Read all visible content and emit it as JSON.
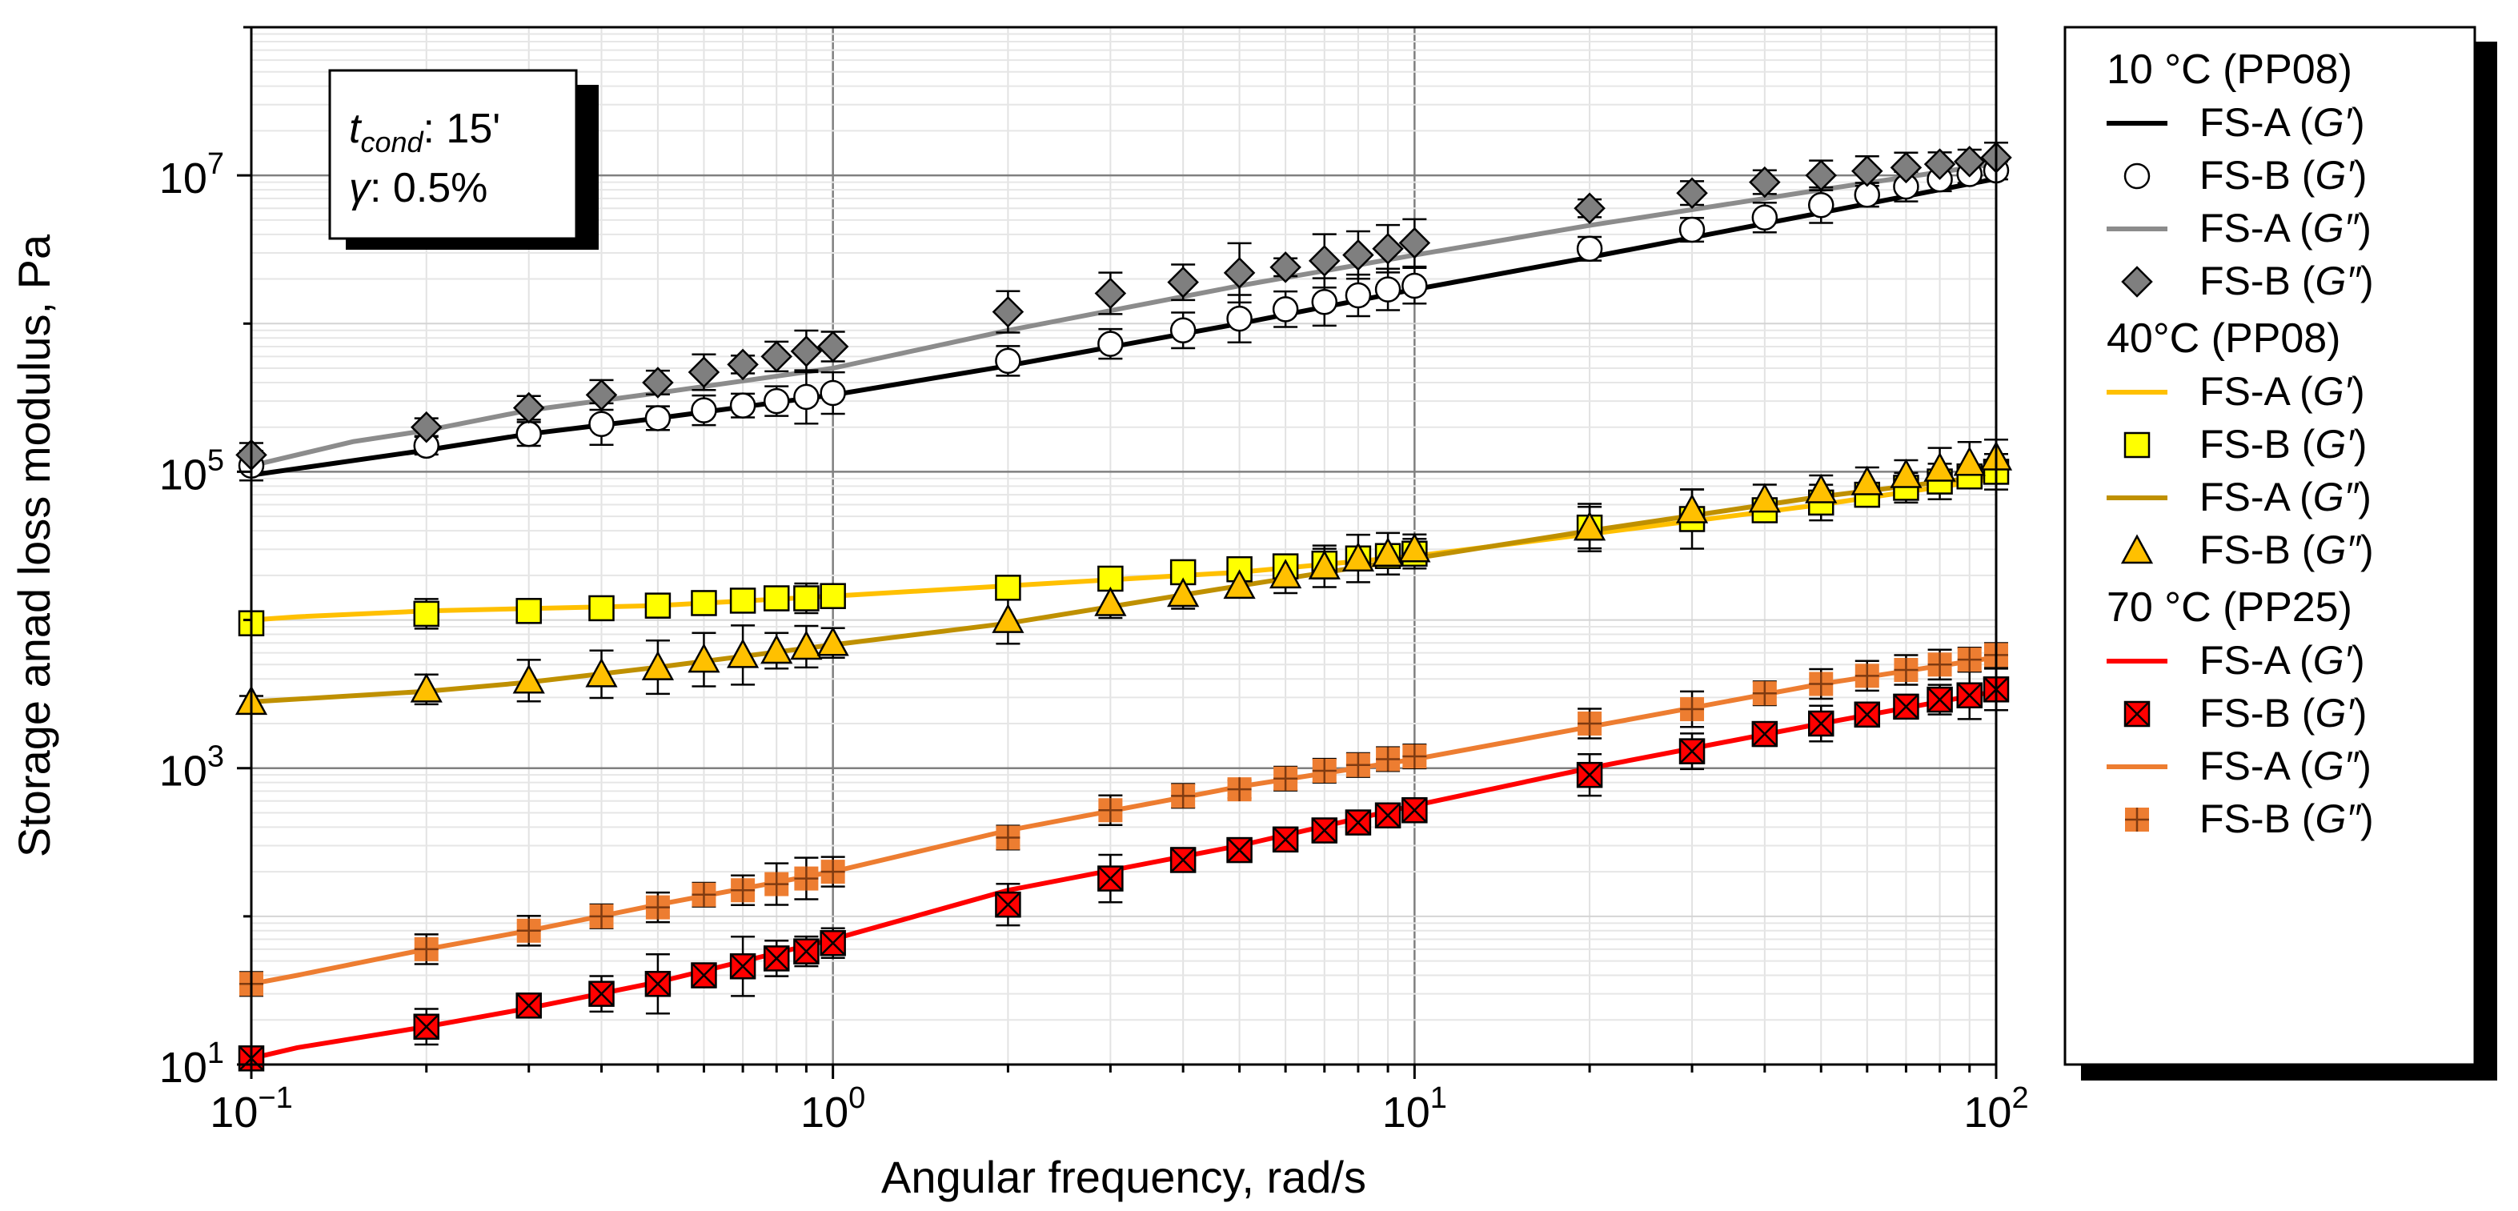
{
  "chart_data": {
    "type": "line",
    "title": "",
    "xlabel": "Angular frequency, rad/s",
    "ylabel": "Storage anad loss modulus, Pa",
    "xscale": "log",
    "yscale": "log",
    "xlim": [
      0.1,
      100
    ],
    "ylim": [
      10,
      100000000
    ],
    "x_tick_labels": [
      {
        "base": "10",
        "exp": "−1"
      },
      {
        "base": "10",
        "exp": "0"
      },
      {
        "base": "10",
        "exp": "1"
      },
      {
        "base": "10",
        "exp": "2"
      }
    ],
    "y_tick_labels": [
      {
        "base": "10",
        "exp": "1"
      },
      {
        "base": "10",
        "exp": "3"
      },
      {
        "base": "10",
        "exp": "5"
      },
      {
        "base": "10",
        "exp": "7"
      }
    ],
    "annotation": {
      "line1_symbol": "t",
      "line1_sub": "cond",
      "line1_text": ": 15'",
      "line2_symbol": "γ",
      "line2_text": ": 0.5%"
    },
    "legend": {
      "placement": "right",
      "groups": [
        {
          "title": "10 °C (PP08)",
          "entries": [
            {
              "prefix": "FS-A (",
              "mod": "G′",
              "suffix": ")",
              "kind": "line",
              "color": "#000000"
            },
            {
              "prefix": "FS-B (",
              "mod": "G′",
              "suffix": ")",
              "kind": "circle",
              "color": "#ffffff"
            },
            {
              "prefix": "FS-A (",
              "mod": "G″",
              "suffix": ")",
              "kind": "line",
              "color": "#8c8c8c"
            },
            {
              "prefix": "FS-B (",
              "mod": "G″",
              "suffix": ")",
              "kind": "diamond",
              "color": "#7f7f7f"
            }
          ]
        },
        {
          "title": "40°C (PP08)",
          "entries": [
            {
              "prefix": "FS-A (",
              "mod": "G′",
              "suffix": ")",
              "kind": "line",
              "color": "#ffc000"
            },
            {
              "prefix": "FS-B (",
              "mod": "G′",
              "suffix": ")",
              "kind": "square",
              "color": "#ffff00"
            },
            {
              "prefix": "FS-A (",
              "mod": "G″",
              "suffix": ")",
              "kind": "line",
              "color": "#bf9000"
            },
            {
              "prefix": "FS-B (",
              "mod": "G″",
              "suffix": ")",
              "kind": "triangle",
              "color": "#ffc000"
            }
          ]
        },
        {
          "title": "70 °C (PP25)",
          "entries": [
            {
              "prefix": "FS-A (",
              "mod": "G′",
              "suffix": ")",
              "kind": "line",
              "color": "#ff0000"
            },
            {
              "prefix": "FS-B (",
              "mod": "G′",
              "suffix": ")",
              "kind": "xsquare",
              "color": "#ff0000"
            },
            {
              "prefix": "FS-A (",
              "mod": "G″",
              "suffix": ")",
              "kind": "line",
              "color": "#ed7d31"
            },
            {
              "prefix": "FS-B (",
              "mod": "G″",
              "suffix": ")",
              "kind": "plussquare",
              "color": "#ed7d31"
            }
          ]
        }
      ]
    },
    "series": [
      {
        "name": "10 °C FS-A (G′)",
        "kind": "line",
        "color": "#000000",
        "x": [
          0.1,
          0.2,
          0.3,
          0.5,
          1,
          2,
          5,
          10,
          20,
          50,
          100
        ],
        "y": [
          95000,
          140000,
          180000,
          230000,
          330000,
          520000,
          1000000,
          1700000,
          2800000,
          5600000,
          9500000
        ]
      },
      {
        "name": "10 °C FS-B (G′)",
        "kind": "circle",
        "color": "#ffffff",
        "x": [
          0.1,
          0.2,
          0.3,
          0.4,
          0.5,
          0.6,
          0.7,
          0.8,
          0.9,
          1,
          2,
          3,
          4,
          5,
          6,
          7,
          8,
          9,
          10,
          20,
          30,
          40,
          50,
          60,
          70,
          80,
          90,
          100
        ],
        "y": [
          110000,
          150000,
          180000,
          210000,
          230000,
          260000,
          280000,
          300000,
          320000,
          340000,
          560000,
          730000,
          900000,
          1080000,
          1250000,
          1400000,
          1550000,
          1700000,
          1800000,
          3200000,
          4300000,
          5200000,
          6300000,
          7400000,
          8400000,
          9400000,
          10200000,
          10800000
        ],
        "err": [
          0.1,
          0.06,
          0.08,
          0.14,
          0.08,
          0.1,
          0.08,
          0.1,
          0.18,
          0.14,
          0.1,
          0.1,
          0.12,
          0.16,
          0.12,
          0.16,
          0.14,
          0.14,
          0.12,
          0.08,
          0.08,
          0.1,
          0.12,
          0.08,
          0.1,
          0.08,
          0.06,
          0.06
        ]
      },
      {
        "name": "10 °C FS-A (G″)",
        "kind": "line",
        "color": "#8c8c8c",
        "x": [
          0.1,
          0.15,
          0.2,
          0.3,
          0.5,
          1,
          2,
          5,
          10,
          20,
          50,
          100
        ],
        "y": [
          110000,
          160000,
          190000,
          260000,
          340000,
          500000,
          900000,
          1800000,
          2900000,
          4600000,
          8000000,
          12000000
        ]
      },
      {
        "name": "10 °C FS-B (G″)",
        "kind": "diamond",
        "color": "#7f7f7f",
        "x": [
          0.1,
          0.2,
          0.3,
          0.4,
          0.5,
          0.6,
          0.7,
          0.8,
          0.9,
          1,
          2,
          3,
          4,
          5,
          6,
          7,
          8,
          9,
          10,
          20,
          30,
          40,
          50,
          60,
          70,
          80,
          90,
          100
        ],
        "y": [
          130000,
          200000,
          270000,
          330000,
          400000,
          470000,
          530000,
          600000,
          650000,
          700000,
          1200000,
          1600000,
          1900000,
          2200000,
          2400000,
          2650000,
          2900000,
          3200000,
          3500000,
          6000000,
          7600000,
          9000000,
          10000000,
          10700000,
          11300000,
          11900000,
          12400000,
          13200000
        ],
        "err": [
          0.08,
          0.06,
          0.08,
          0.1,
          0.08,
          0.12,
          0.06,
          0.1,
          0.14,
          0.1,
          0.14,
          0.14,
          0.12,
          0.2,
          0.06,
          0.18,
          0.16,
          0.16,
          0.16,
          0.06,
          0.08,
          0.08,
          0.1,
          0.1,
          0.1,
          0.08,
          0.08,
          0.1
        ]
      },
      {
        "name": "40°C FS-A (G′)",
        "kind": "line",
        "color": "#ffc000",
        "x": [
          0.1,
          0.12,
          0.2,
          0.5,
          1,
          2,
          5,
          10,
          20,
          50,
          100
        ],
        "y": [
          10000,
          10500,
          11500,
          12500,
          14500,
          17000,
          21000,
          27000,
          38000,
          60000,
          90000
        ]
      },
      {
        "name": "40°C FS-B (G′)",
        "kind": "square",
        "color": "#ffff00",
        "x": [
          0.1,
          0.2,
          0.3,
          0.4,
          0.5,
          0.6,
          0.7,
          0.8,
          0.9,
          1,
          2,
          3,
          4,
          5,
          6,
          7,
          8,
          9,
          10,
          20,
          30,
          40,
          50,
          60,
          70,
          80,
          90,
          100
        ],
        "y": [
          9500,
          11000,
          11500,
          12000,
          12500,
          13000,
          13500,
          14000,
          14000,
          14500,
          16500,
          19000,
          21000,
          22000,
          23000,
          24000,
          26000,
          27000,
          28000,
          42000,
          48000,
          55000,
          62000,
          70000,
          78000,
          86000,
          93000,
          100000
        ],
        "err": [
          0.04,
          0.1,
          0.08,
          0.06,
          0.08,
          0.08,
          0.06,
          0.08,
          0.1,
          0.08,
          0.08,
          0.06,
          0.06,
          0.08,
          0.08,
          0.1,
          0.08,
          0.08,
          0.1,
          0.14,
          0.2,
          0.08,
          0.12,
          0.08,
          0.1,
          0.12,
          0.08,
          0.12
        ]
      },
      {
        "name": "40°C FS-A (G″)",
        "kind": "line",
        "color": "#bf9000",
        "x": [
          0.1,
          0.2,
          0.3,
          0.5,
          1,
          2,
          5,
          10,
          20,
          50,
          100
        ],
        "y": [
          2800,
          3300,
          3800,
          4800,
          6800,
          9500,
          17000,
          26000,
          40000,
          68000,
          95000
        ]
      },
      {
        "name": "40°C FS-B (G″)",
        "kind": "triangle",
        "color": "#ffc000",
        "x": [
          0.1,
          0.2,
          0.3,
          0.4,
          0.5,
          0.6,
          0.7,
          0.8,
          0.9,
          1,
          2,
          3,
          4,
          5,
          6,
          7,
          8,
          9,
          10,
          20,
          30,
          40,
          50,
          60,
          70,
          80,
          90,
          100
        ],
        "y": [
          2800,
          3400,
          3900,
          4300,
          4800,
          5400,
          5800,
          6200,
          6600,
          7000,
          10000,
          13000,
          15000,
          17000,
          20000,
          23000,
          26000,
          28000,
          30000,
          42000,
          55000,
          65000,
          75000,
          85000,
          95000,
          105000,
          115000,
          125000
        ],
        "err": [
          0.04,
          0.1,
          0.14,
          0.16,
          0.18,
          0.18,
          0.2,
          0.12,
          0.14,
          0.1,
          0.16,
          0.1,
          0.1,
          0.08,
          0.12,
          0.14,
          0.16,
          0.14,
          0.1,
          0.16,
          0.14,
          0.1,
          0.1,
          0.1,
          0.1,
          0.14,
          0.14,
          0.12
        ]
      },
      {
        "name": "70 °C FS-A (G′)",
        "kind": "line",
        "color": "#ff0000",
        "x": [
          0.1,
          0.12,
          0.2,
          0.3,
          0.5,
          1,
          2,
          5,
          10,
          20,
          50,
          100
        ],
        "y": [
          11,
          13,
          18,
          24,
          36,
          70,
          150,
          300,
          560,
          1000,
          2000,
          3300
        ]
      },
      {
        "name": "70 °C FS-B (G′)",
        "kind": "xsquare",
        "color": "#ff0000",
        "x": [
          0.1,
          0.2,
          0.3,
          0.4,
          0.5,
          0.6,
          0.7,
          0.8,
          0.9,
          1,
          2,
          3,
          4,
          5,
          6,
          7,
          8,
          9,
          10,
          20,
          30,
          40,
          50,
          60,
          70,
          80,
          90,
          100
        ],
        "y": [
          11,
          18,
          25,
          30,
          35,
          40,
          46,
          52,
          58,
          66,
          120,
          180,
          240,
          280,
          330,
          380,
          430,
          480,
          520,
          900,
          1300,
          1700,
          2000,
          2300,
          2600,
          2900,
          3100,
          3400
        ],
        "err": [
          0.04,
          0.12,
          0.06,
          0.12,
          0.2,
          0.08,
          0.2,
          0.12,
          0.1,
          0.1,
          0.14,
          0.16,
          0.08,
          0.06,
          0.08,
          0.08,
          0.08,
          0.08,
          0.08,
          0.14,
          0.12,
          0.08,
          0.12,
          0.08,
          0.08,
          0.1,
          0.16,
          0.14
        ]
      },
      {
        "name": "70 °C FS-A (G″)",
        "kind": "line",
        "color": "#ed7d31",
        "x": [
          0.1,
          0.12,
          0.2,
          0.3,
          0.5,
          1,
          2,
          5,
          10,
          20,
          50,
          100
        ],
        "y": [
          35,
          40,
          60,
          80,
          120,
          200,
          380,
          750,
          1150,
          1900,
          3700,
          5600
        ]
      },
      {
        "name": "70 °C FS-B (G″)",
        "kind": "plussquare",
        "color": "#ed7d31",
        "x": [
          0.1,
          0.2,
          0.3,
          0.4,
          0.5,
          0.6,
          0.7,
          0.8,
          0.9,
          1,
          2,
          3,
          4,
          5,
          6,
          7,
          8,
          9,
          10,
          20,
          30,
          40,
          50,
          60,
          70,
          80,
          90,
          100
        ],
        "y": [
          35,
          60,
          80,
          100,
          115,
          140,
          150,
          165,
          180,
          200,
          340,
          520,
          650,
          720,
          850,
          960,
          1050,
          1150,
          1200,
          2000,
          2500,
          3200,
          3700,
          4200,
          4600,
          5000,
          5400,
          5800
        ],
        "err": [
          0.08,
          0.1,
          0.1,
          0.08,
          0.1,
          0.08,
          0.1,
          0.14,
          0.14,
          0.1,
          0.08,
          0.1,
          0.08,
          0.06,
          0.08,
          0.08,
          0.08,
          0.08,
          0.08,
          0.1,
          0.12,
          0.08,
          0.1,
          0.1,
          0.1,
          0.1,
          0.08,
          0.08
        ]
      }
    ]
  }
}
